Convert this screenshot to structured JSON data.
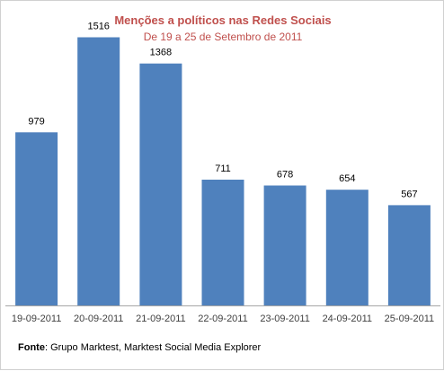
{
  "chart_data": {
    "type": "bar",
    "title": "Menções a políticos nas Redes Sociais",
    "subtitle": "De 19 a 25 de Setembro de 2011",
    "categories": [
      "19-09-2011",
      "20-09-2011",
      "21-09-2011",
      "22-09-2011",
      "23-09-2011",
      "24-09-2011",
      "25-09-2011"
    ],
    "values": [
      979,
      1516,
      1368,
      711,
      678,
      654,
      567
    ],
    "data_labels": [
      "979",
      "1516",
      "1368",
      "711",
      "678",
      "654",
      "567"
    ],
    "bar_color": "#4f81bd",
    "ylim": [
      0,
      1600
    ],
    "xlabel": "",
    "ylabel": "",
    "grid": false,
    "legend": "none"
  },
  "source": {
    "label": "Fonte",
    "text": ": Grupo Marktest, Marktest Social Media Explorer"
  },
  "colors": {
    "title": "#c0504d",
    "axis": "#a6a6a6"
  }
}
